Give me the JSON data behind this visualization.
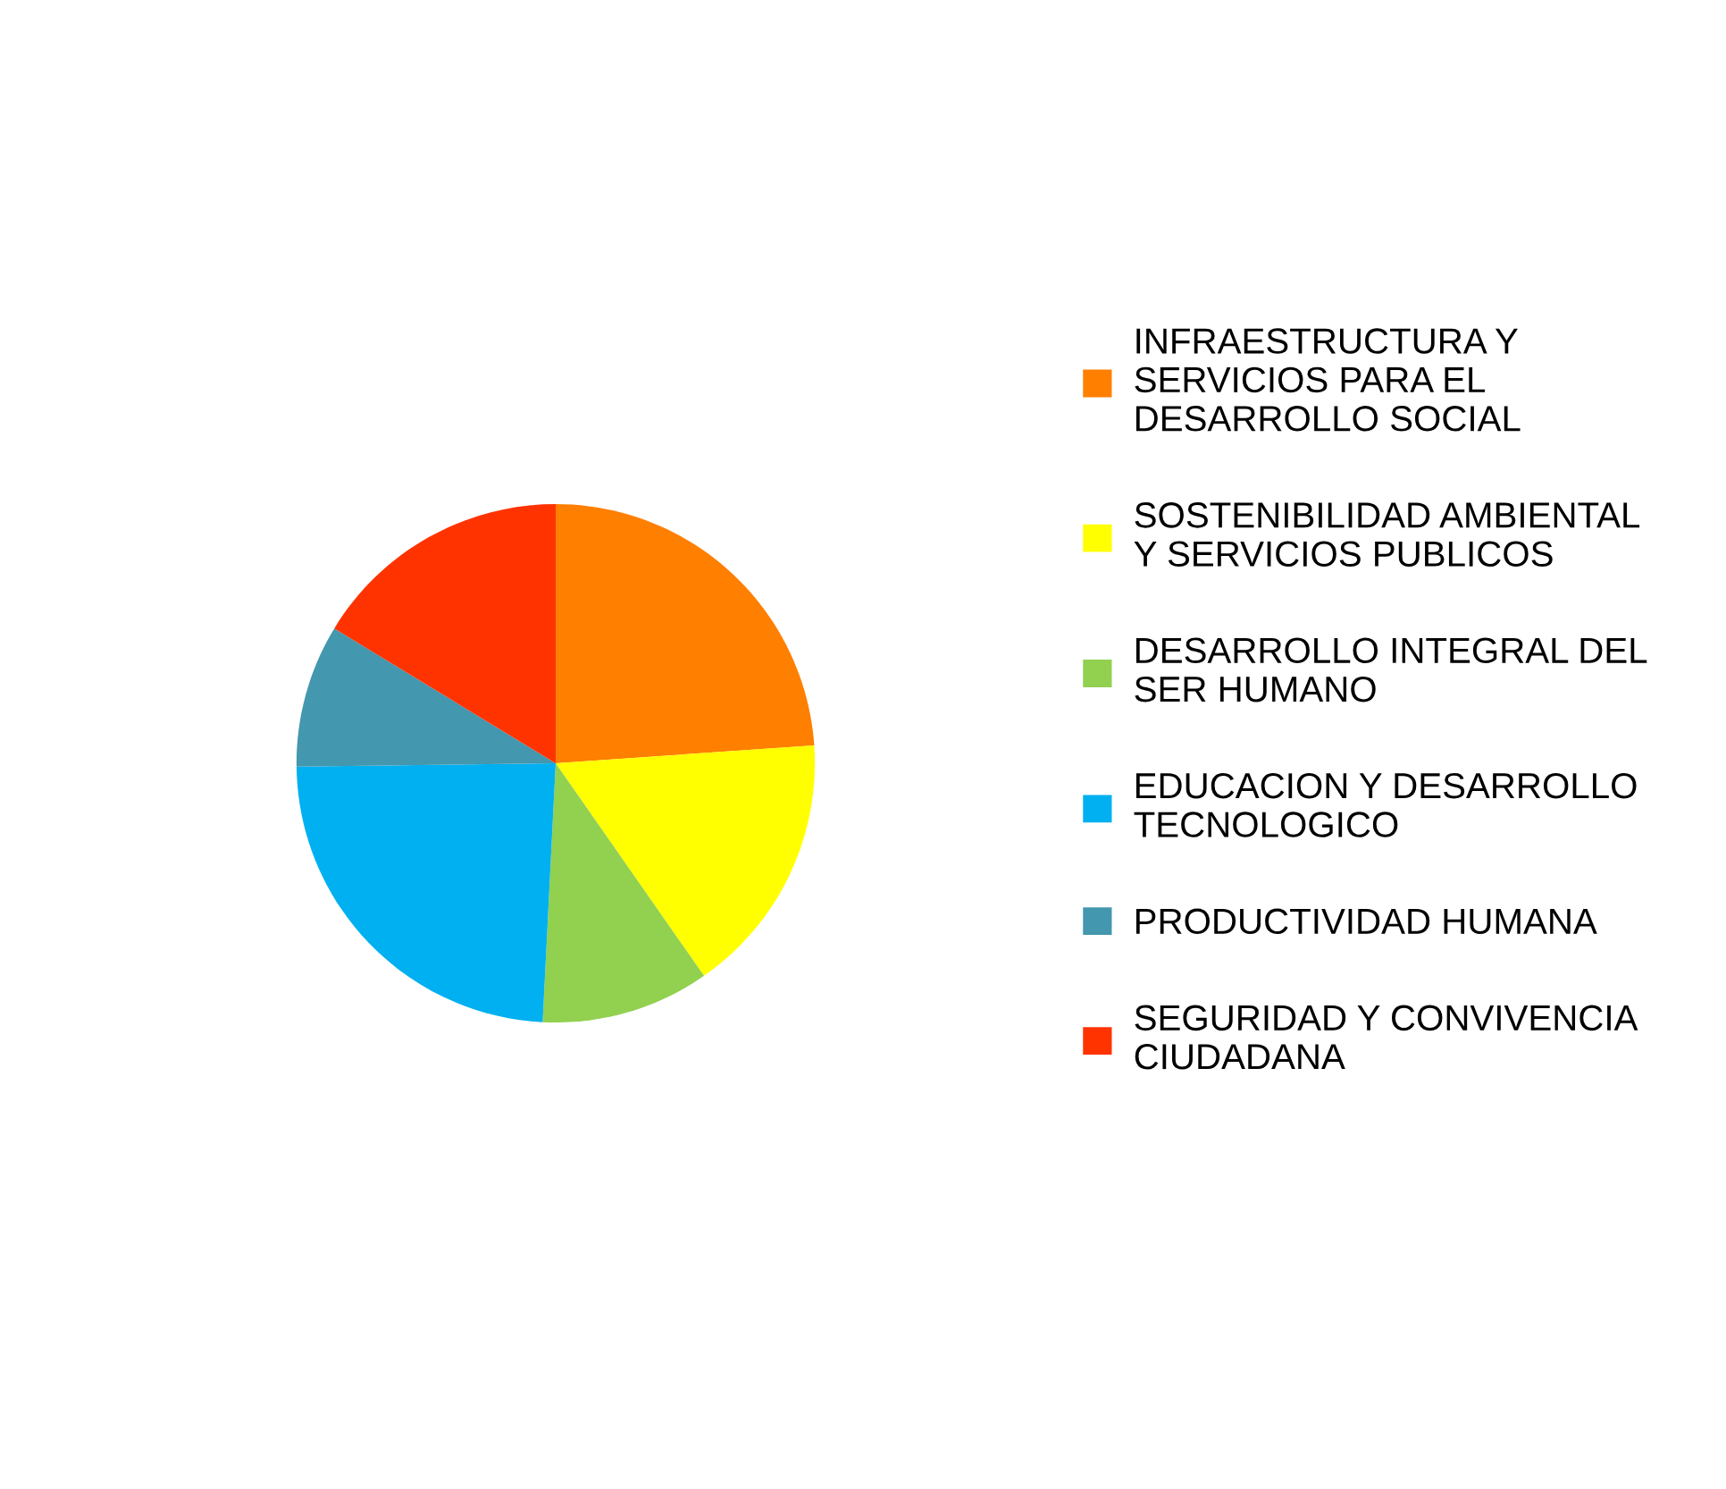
{
  "chart_data": {
    "type": "pie",
    "categories": [
      "INFRAESTRUCTURA Y\nSERVICIOS PARA EL\nDESARROLLO SOCIAL",
      "SOSTENIBILIDAD AMBIENTAL\nY SERVICIOS PUBLICOS",
      "DESARROLLO INTEGRAL DEL\nSER HUMANO",
      "EDUCACION Y DESARROLLO\nTECNOLOGICO",
      "PRODUCTIVIDAD HUMANA",
      "SEGURIDAD Y CONVIVENCIA\nCIUDADANA"
    ],
    "values": [
      23.9,
      16.4,
      10.5,
      24.0,
      8.9,
      16.3
    ],
    "colors": [
      "#ff7f00",
      "#ffff00",
      "#92d050",
      "#00b0f0",
      "#4397ae",
      "#ff3300"
    ],
    "legend": "right"
  }
}
